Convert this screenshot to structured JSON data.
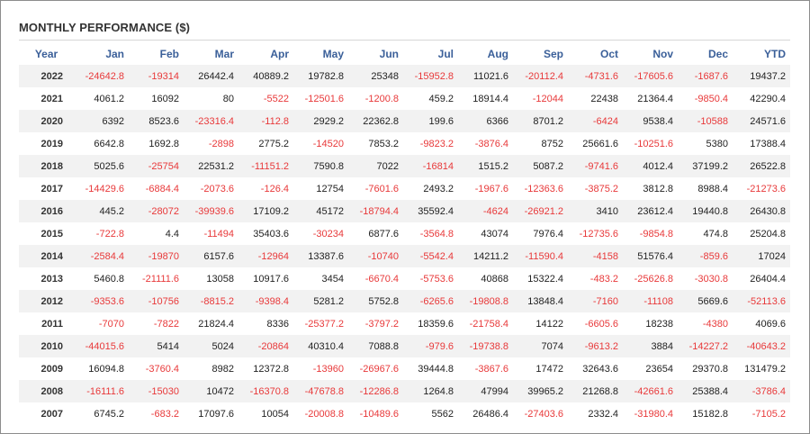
{
  "title": "MONTHLY PERFORMANCE ($)",
  "colors": {
    "negative": "#e8393a",
    "header": "#3a5f99",
    "stripe": "#f2f2f2"
  },
  "columns": [
    "Year",
    "Jan",
    "Feb",
    "Mar",
    "Apr",
    "May",
    "Jun",
    "Jul",
    "Aug",
    "Sep",
    "Oct",
    "Nov",
    "Dec",
    "YTD"
  ],
  "rows": [
    [
      "2022",
      "-24642.8",
      "-19314",
      "26442.4",
      "40889.2",
      "19782.8",
      "25348",
      "-15952.8",
      "11021.6",
      "-20112.4",
      "-4731.6",
      "-17605.6",
      "-1687.6",
      "19437.2"
    ],
    [
      "2021",
      "4061.2",
      "16092",
      "80",
      "-5522",
      "-12501.6",
      "-1200.8",
      "459.2",
      "18914.4",
      "-12044",
      "22438",
      "21364.4",
      "-9850.4",
      "42290.4"
    ],
    [
      "2020",
      "6392",
      "8523.6",
      "-23316.4",
      "-112.8",
      "2929.2",
      "22362.8",
      "199.6",
      "6366",
      "8701.2",
      "-6424",
      "9538.4",
      "-10588",
      "24571.6"
    ],
    [
      "2019",
      "6642.8",
      "1692.8",
      "-2898",
      "2775.2",
      "-14520",
      "7853.2",
      "-9823.2",
      "-3876.4",
      "8752",
      "25661.6",
      "-10251.6",
      "5380",
      "17388.4"
    ],
    [
      "2018",
      "5025.6",
      "-25754",
      "22531.2",
      "-11151.2",
      "7590.8",
      "7022",
      "-16814",
      "1515.2",
      "5087.2",
      "-9741.6",
      "4012.4",
      "37199.2",
      "26522.8"
    ],
    [
      "2017",
      "-14429.6",
      "-6884.4",
      "-2073.6",
      "-126.4",
      "12754",
      "-7601.6",
      "2493.2",
      "-1967.6",
      "-12363.6",
      "-3875.2",
      "3812.8",
      "8988.4",
      "-21273.6"
    ],
    [
      "2016",
      "445.2",
      "-28072",
      "-39939.6",
      "17109.2",
      "45172",
      "-18794.4",
      "35592.4",
      "-4624",
      "-26921.2",
      "3410",
      "23612.4",
      "19440.8",
      "26430.8"
    ],
    [
      "2015",
      "-722.8",
      "4.4",
      "-11494",
      "35403.6",
      "-30234",
      "6877.6",
      "-3564.8",
      "43074",
      "7976.4",
      "-12735.6",
      "-9854.8",
      "474.8",
      "25204.8"
    ],
    [
      "2014",
      "-2584.4",
      "-19870",
      "6157.6",
      "-12964",
      "13387.6",
      "-10740",
      "-5542.4",
      "14211.2",
      "-11590.4",
      "-4158",
      "51576.4",
      "-859.6",
      "17024"
    ],
    [
      "2013",
      "5460.8",
      "-21111.6",
      "13058",
      "10917.6",
      "3454",
      "-6670.4",
      "-5753.6",
      "40868",
      "15322.4",
      "-483.2",
      "-25626.8",
      "-3030.8",
      "26404.4"
    ],
    [
      "2012",
      "-9353.6",
      "-10756",
      "-8815.2",
      "-9398.4",
      "5281.2",
      "5752.8",
      "-6265.6",
      "-19808.8",
      "13848.4",
      "-7160",
      "-11108",
      "5669.6",
      "-52113.6"
    ],
    [
      "2011",
      "-7070",
      "-7822",
      "21824.4",
      "8336",
      "-25377.2",
      "-3797.2",
      "18359.6",
      "-21758.4",
      "14122",
      "-6605.6",
      "18238",
      "-4380",
      "4069.6"
    ],
    [
      "2010",
      "-44015.6",
      "5414",
      "5024",
      "-20864",
      "40310.4",
      "7088.8",
      "-979.6",
      "-19738.8",
      "7074",
      "-9613.2",
      "3884",
      "-14227.2",
      "-40643.2"
    ],
    [
      "2009",
      "16094.8",
      "-3760.4",
      "8982",
      "12372.8",
      "-13960",
      "-26967.6",
      "39444.8",
      "-3867.6",
      "17472",
      "32643.6",
      "23654",
      "29370.8",
      "131479.2"
    ],
    [
      "2008",
      "-16111.6",
      "-15030",
      "10472",
      "-16370.8",
      "-47678.8",
      "-12286.8",
      "1264.8",
      "47994",
      "39965.2",
      "21268.8",
      "-42661.6",
      "25388.4",
      "-3786.4"
    ],
    [
      "2007",
      "6745.2",
      "-683.2",
      "17097.6",
      "10054",
      "-20008.8",
      "-10489.6",
      "5562",
      "26486.4",
      "-27403.6",
      "2332.4",
      "-31980.4",
      "15182.8",
      "-7105.2"
    ]
  ]
}
